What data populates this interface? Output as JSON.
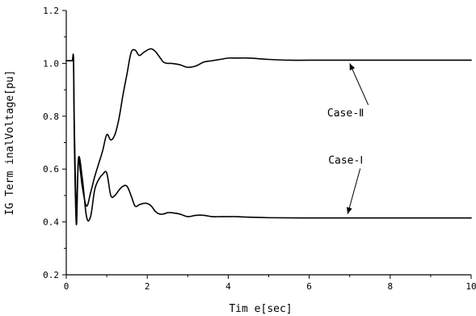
{
  "chart_data": {
    "type": "line",
    "title": "",
    "xlabel": "Tim e[sec]",
    "ylabel": "IG Term inalVoltage[pu]",
    "xlim": [
      0,
      10
    ],
    "ylim": [
      0.2,
      1.2
    ],
    "xticks": [
      0,
      2,
      4,
      6,
      8,
      10
    ],
    "xtick_labels": [
      "0",
      "2",
      "4",
      "6",
      "8",
      "10"
    ],
    "yticks": [
      0.2,
      0.4,
      0.6,
      0.8,
      1.0,
      1.2
    ],
    "ytick_labels": [
      "0.2",
      "0.4",
      "0.6",
      "0.8",
      "1.0",
      "1.2"
    ],
    "grid": false,
    "series": [
      {
        "name": "Case-Ⅱ",
        "x": [
          0,
          0.05,
          0.1,
          0.15,
          0.18,
          0.2,
          0.25,
          0.3,
          0.35,
          0.4,
          0.5,
          0.6,
          0.7,
          0.8,
          0.9,
          1.0,
          1.1,
          1.2,
          1.3,
          1.4,
          1.5,
          1.6,
          1.7,
          1.8,
          1.9,
          2.0,
          2.1,
          2.2,
          2.3,
          2.4,
          2.5,
          2.6,
          2.8,
          3.0,
          3.2,
          3.4,
          3.6,
          3.8,
          4.0,
          4.2,
          4.5,
          5.0,
          5.5,
          6.0,
          7.0,
          8.0,
          9.0,
          10.0
        ],
        "y": [
          1.01,
          1.01,
          1.01,
          1.01,
          1.01,
          0.76,
          0.45,
          0.63,
          0.59,
          0.53,
          0.46,
          0.51,
          0.57,
          0.62,
          0.67,
          0.73,
          0.71,
          0.73,
          0.79,
          0.88,
          0.96,
          1.04,
          1.05,
          1.03,
          1.04,
          1.05,
          1.055,
          1.045,
          1.025,
          1.005,
          1.0,
          1.0,
          0.995,
          0.985,
          0.99,
          1.005,
          1.01,
          1.015,
          1.02,
          1.02,
          1.02,
          1.015,
          1.012,
          1.012,
          1.012,
          1.012,
          1.012,
          1.012
        ]
      },
      {
        "name": "Case-Ⅰ",
        "x": [
          0,
          0.05,
          0.1,
          0.15,
          0.18,
          0.2,
          0.25,
          0.3,
          0.4,
          0.5,
          0.6,
          0.7,
          0.8,
          0.9,
          1.0,
          1.1,
          1.2,
          1.3,
          1.4,
          1.5,
          1.6,
          1.7,
          1.8,
          1.9,
          2.0,
          2.1,
          2.2,
          2.3,
          2.4,
          2.5,
          2.6,
          2.8,
          3.0,
          3.2,
          3.4,
          3.6,
          3.8,
          4.0,
          4.2,
          4.5,
          5.0,
          6.0,
          7.0,
          8.0,
          9.0,
          10.0
        ],
        "y": [
          1.01,
          1.01,
          1.01,
          1.01,
          1.01,
          0.7,
          0.39,
          0.64,
          0.56,
          0.42,
          0.42,
          0.52,
          0.56,
          0.58,
          0.585,
          0.5,
          0.5,
          0.52,
          0.535,
          0.535,
          0.5,
          0.46,
          0.465,
          0.47,
          0.47,
          0.46,
          0.44,
          0.43,
          0.43,
          0.435,
          0.435,
          0.43,
          0.42,
          0.425,
          0.425,
          0.42,
          0.42,
          0.42,
          0.42,
          0.418,
          0.416,
          0.415,
          0.415,
          0.415,
          0.415,
          0.415
        ]
      }
    ],
    "annotations": [
      {
        "text": "Case-Ⅱ",
        "x": 6.9,
        "y": 0.8,
        "arrow_to_x": 7.0,
        "arrow_to_y": 1.0
      },
      {
        "text": "Case-Ⅰ",
        "x": 6.9,
        "y": 0.62,
        "arrow_to_x": 6.95,
        "arrow_to_y": 0.43
      }
    ]
  }
}
